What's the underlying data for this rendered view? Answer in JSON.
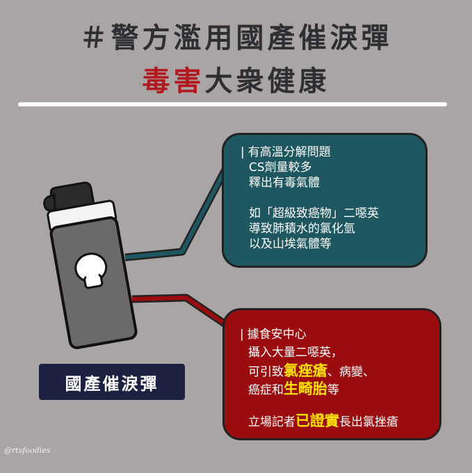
{
  "title": {
    "line1": "＃警方濫用國產催淚彈",
    "line2_red": "毒害",
    "line2_rest": "大衆健康"
  },
  "teal_bubble": {
    "lines": [
      "有高溫分解問題",
      "CS劑量較多",
      "釋出有毒氣體"
    ],
    "lines2": [
      "如「超級致癌物」二噁英",
      "導致肺積水的氯化氫",
      "以及山埃氣體等"
    ]
  },
  "red_bubble": {
    "l1": "據食安中心",
    "l2": "攝入大量二噁英，",
    "l3_pre": "可引致",
    "l3_hl": "氯痤瘡",
    "l3_post": "、病變、",
    "l4_pre": "癌症和",
    "l4_hl": "生畸胎",
    "l4_post": "等",
    "l5_pre": "立場記者",
    "l5_hl": "已證實",
    "l5_post": "長出氯挫瘡"
  },
  "canister_label": "國產催淚彈",
  "watermark": "@rtsfoodies",
  "colors": {
    "background": "#a8a5a4",
    "teal": "#1e5760",
    "red": "#9b0c0f",
    "highlight": "#ffe300",
    "title_red": "#b3181e",
    "label_bg": "#1c2142"
  }
}
